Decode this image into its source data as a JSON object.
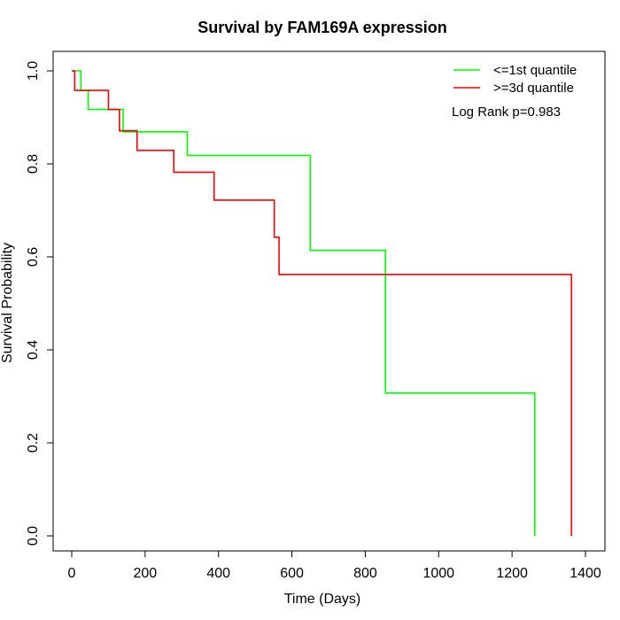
{
  "chart_data": {
    "type": "line",
    "step": true,
    "title": "Survival by FAM169A expression",
    "xlabel": "Time (Days)",
    "ylabel": "Survival Probability",
    "xlim": [
      0,
      1400
    ],
    "ylim": [
      0,
      1
    ],
    "x_ticks": [
      0,
      200,
      400,
      600,
      800,
      1000,
      1200,
      1400
    ],
    "y_ticks": [
      0.0,
      0.2,
      0.4,
      0.6,
      0.8,
      1.0
    ],
    "y_tick_labels": [
      "0.0",
      "0.2",
      "0.4",
      "0.6",
      "0.8",
      "1.0"
    ],
    "grid": false,
    "legend_position": "top-right",
    "annotation": "Log Rank p=0.983",
    "series": [
      {
        "name": "<=1st quantile",
        "color": "#00ff00",
        "x": [
          0,
          25,
          45,
          140,
          315,
          650,
          855,
          1262,
          1262
        ],
        "y": [
          1.0,
          0.958,
          0.917,
          0.869,
          0.818,
          0.614,
          0.307,
          0.307,
          0.0
        ]
      },
      {
        "name": ">=3d quantile",
        "color": "#ff0000",
        "x": [
          0,
          8,
          100,
          130,
          178,
          278,
          388,
          552,
          565,
          1362,
          1362
        ],
        "y": [
          1.0,
          0.958,
          0.917,
          0.871,
          0.829,
          0.782,
          0.722,
          0.642,
          0.562,
          0.562,
          0.0
        ]
      }
    ]
  }
}
